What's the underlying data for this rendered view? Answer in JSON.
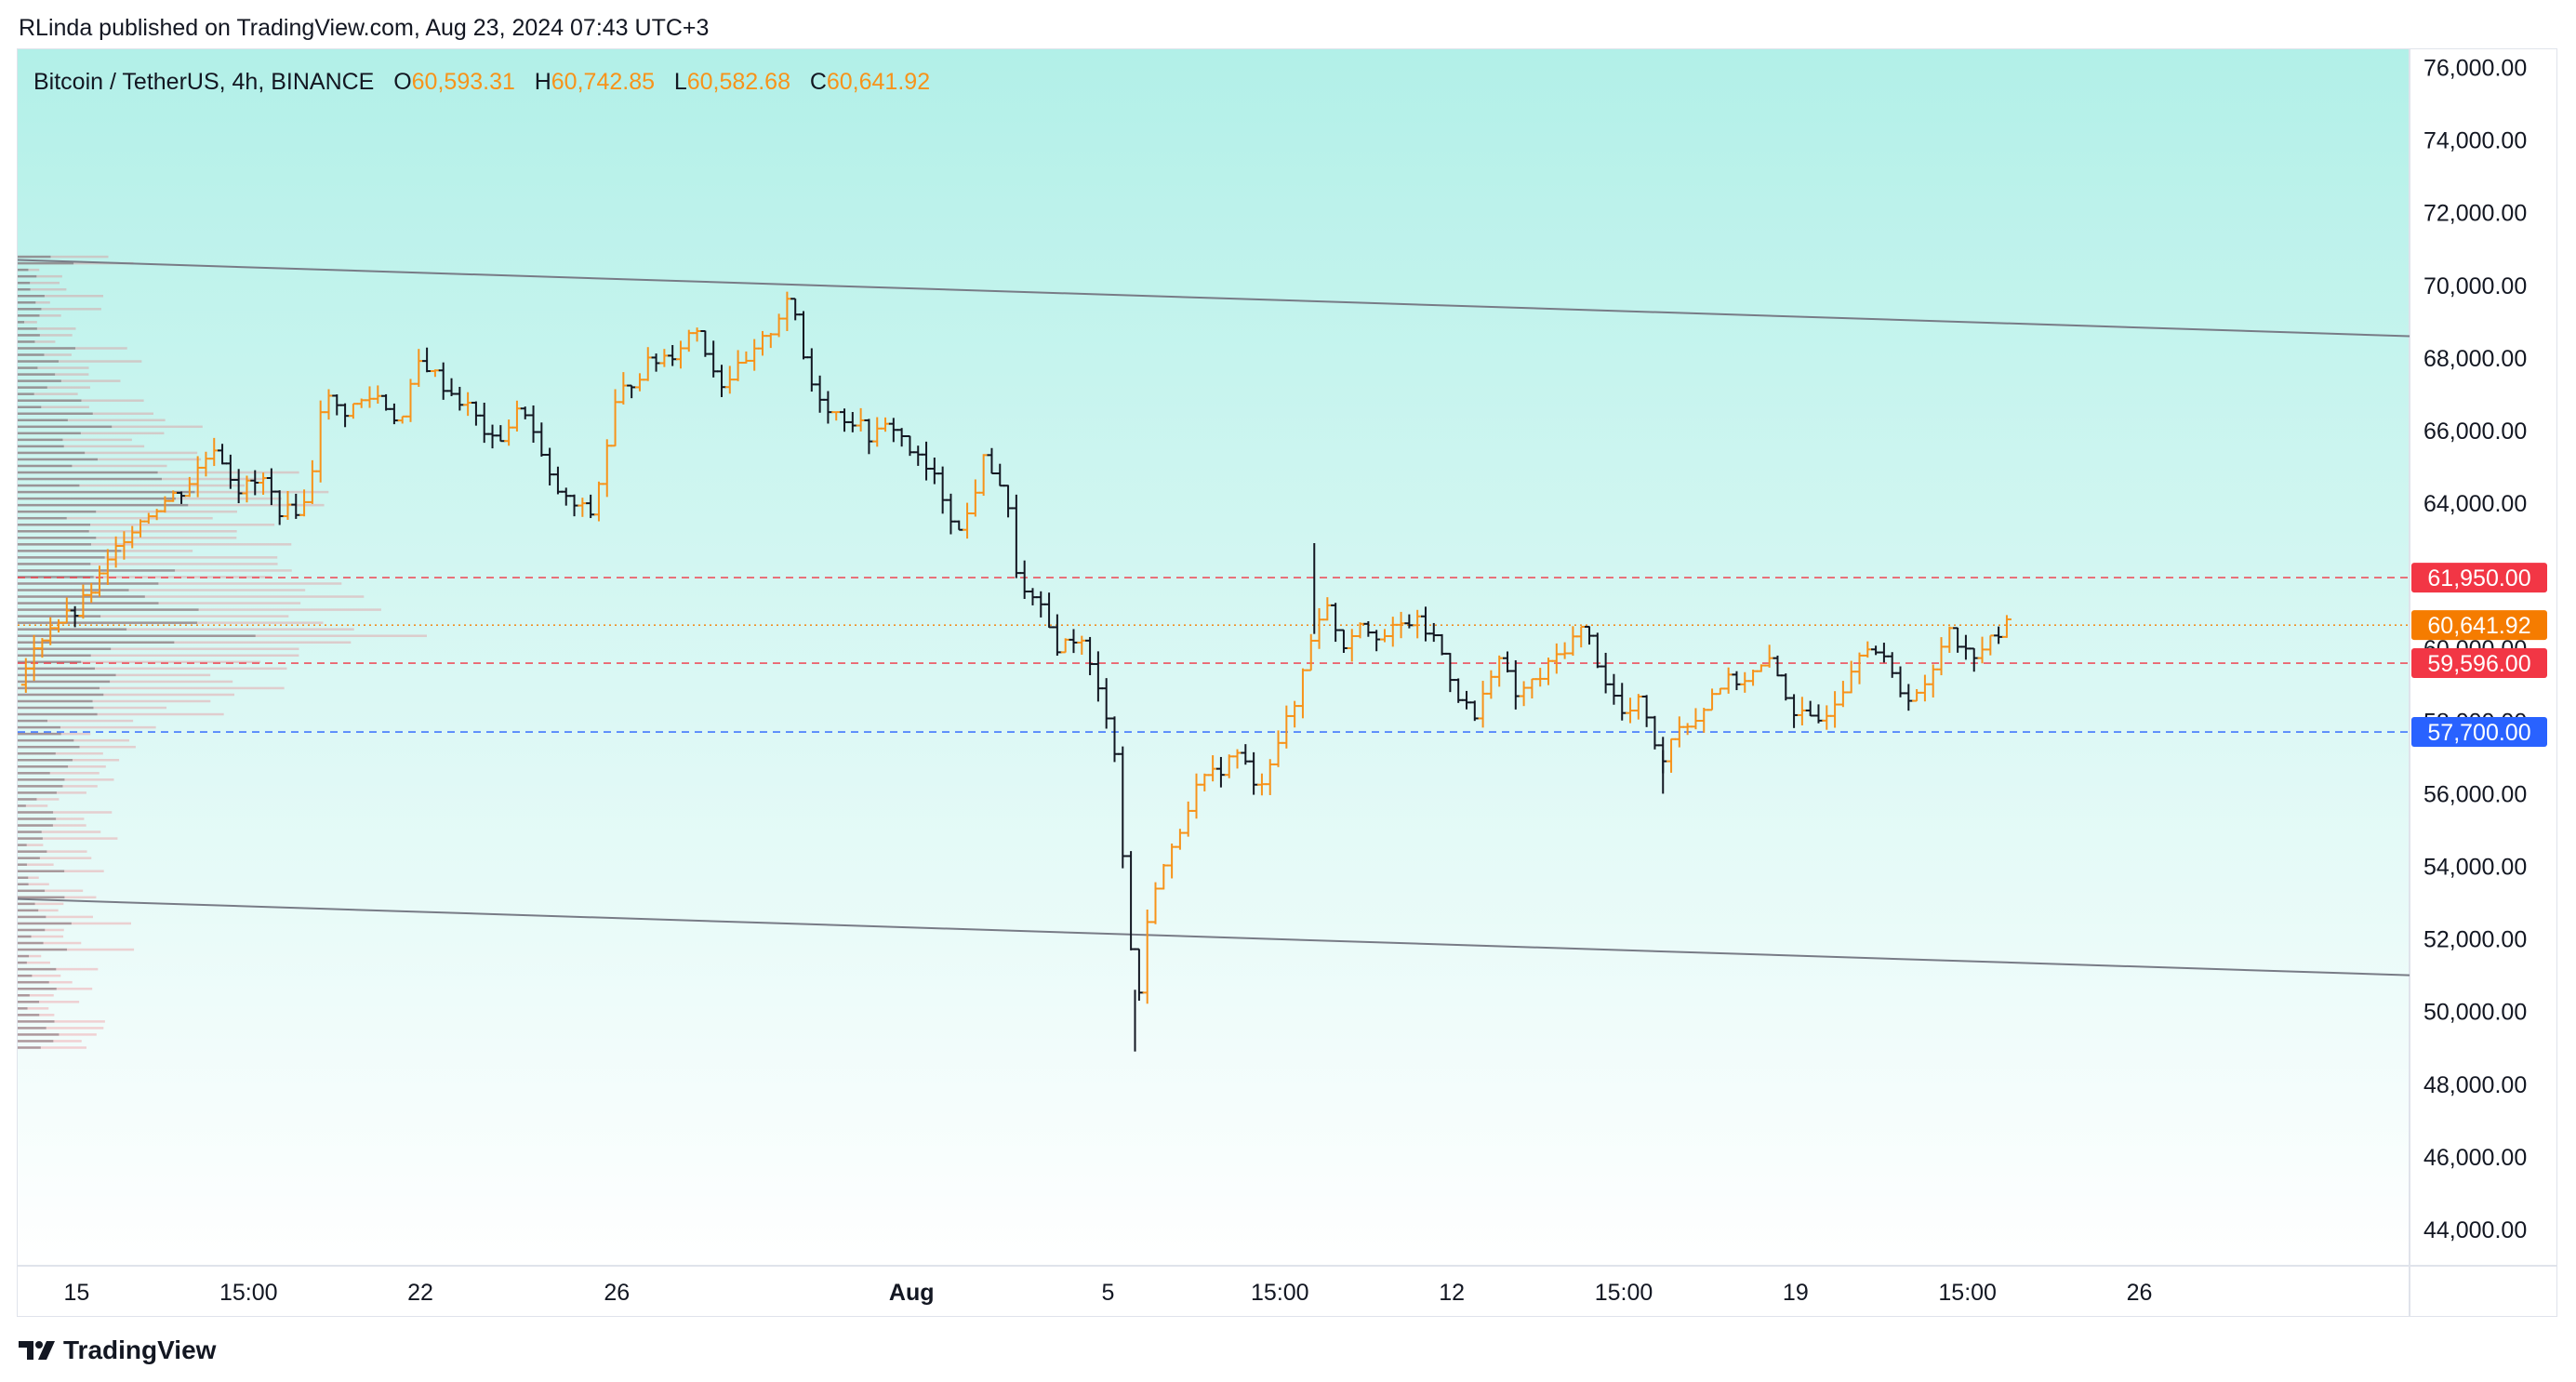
{
  "attribution": "RLinda published on TradingView.com, Aug 23, 2024 07:43 UTC+3",
  "legend": {
    "symbol": "Bitcoin / TetherUS, 4h, BINANCE",
    "o_label": "O",
    "o_value": "60,593.31",
    "h_label": "H",
    "h_value": "60,742.85",
    "l_label": "L",
    "l_value": "60,582.68",
    "c_label": "C",
    "c_value": "60,641.92"
  },
  "footer": {
    "brand": "TradingView"
  },
  "colors": {
    "up": "#f7931a",
    "down": "#131722",
    "bg_top": "#b2f0e8",
    "bg_bottom": "#ffffff",
    "level_red": "#f23645",
    "level_blue": "#2962ff",
    "price_orange": "#f57c00"
  },
  "chart_data": {
    "type": "candlestick",
    "interval": "4h",
    "ylim": [
      43000,
      76500
    ],
    "y_ticks": [
      {
        "v": 76000,
        "label": "76,000.00"
      },
      {
        "v": 74000,
        "label": "74,000.00"
      },
      {
        "v": 72000,
        "label": "72,000.00"
      },
      {
        "v": 70000,
        "label": "70,000.00"
      },
      {
        "v": 68000,
        "label": "68,000.00"
      },
      {
        "v": 66000,
        "label": "66,000.00"
      },
      {
        "v": 64000,
        "label": "64,000.00"
      },
      {
        "v": 62000,
        "label": "62,000.00"
      },
      {
        "v": 60000,
        "label": "60,000.00"
      },
      {
        "v": 58000,
        "label": "58,000.00"
      },
      {
        "v": 56000,
        "label": "56,000.00"
      },
      {
        "v": 54000,
        "label": "54,000.00"
      },
      {
        "v": 52000,
        "label": "52,000.00"
      },
      {
        "v": 50000,
        "label": "50,000.00"
      },
      {
        "v": 48000,
        "label": "48,000.00"
      },
      {
        "v": 46000,
        "label": "46,000.00"
      },
      {
        "v": 44000,
        "label": "44,000.00"
      }
    ],
    "x_ticks": [
      {
        "t": 0,
        "label": "15"
      },
      {
        "t": 3.5,
        "label": "15:00"
      },
      {
        "t": 7,
        "label": "22"
      },
      {
        "t": 11,
        "label": "26"
      },
      {
        "t": 17,
        "label": "Aug"
      },
      {
        "t": 21,
        "label": "5"
      },
      {
        "t": 24.5,
        "label": "15:00"
      },
      {
        "t": 28,
        "label": "12"
      },
      {
        "t": 31.5,
        "label": "15:00"
      },
      {
        "t": 35,
        "label": "19"
      },
      {
        "t": 38.5,
        "label": "15:00"
      },
      {
        "t": 42,
        "label": "26"
      }
    ],
    "x_range_days": [
      -1.2,
      47.5
    ],
    "levels": [
      {
        "price": 61950,
        "label": "61,950.00",
        "style": "dashed",
        "color": "#f23645"
      },
      {
        "price": 59596,
        "label": "59,596.00",
        "style": "dashed",
        "color": "#f23645"
      },
      {
        "price": 57700,
        "label": "57,700.00",
        "style": "dashed",
        "color": "#2962ff"
      },
      {
        "price": 60641.92,
        "label": "60,641.92",
        "style": "dotted",
        "color": "#f57c00"
      }
    ],
    "channel": [
      {
        "t1": -1.2,
        "p1": 70700,
        "t2": 47.5,
        "p2": 68600
      },
      {
        "t1": -1.2,
        "p1": 53100,
        "t2": 47.5,
        "p2": 51000
      }
    ],
    "candles_anchor_days": [
      [
        -1.2,
        59000
      ],
      [
        -0.6,
        60600
      ],
      [
        0.0,
        61000
      ],
      [
        0.5,
        62000
      ],
      [
        1.0,
        63200
      ],
      [
        1.6,
        63900
      ],
      [
        2.2,
        64400
      ],
      [
        2.8,
        65600
      ],
      [
        3.3,
        64400
      ],
      [
        3.8,
        64600
      ],
      [
        4.2,
        63700
      ],
      [
        4.7,
        64000
      ],
      [
        5.0,
        67000
      ],
      [
        5.4,
        66500
      ],
      [
        6.1,
        67000
      ],
      [
        6.6,
        66200
      ],
      [
        7.0,
        68000
      ],
      [
        7.5,
        67200
      ],
      [
        8.0,
        66600
      ],
      [
        8.5,
        65600
      ],
      [
        9.1,
        66700
      ],
      [
        9.6,
        64700
      ],
      [
        10.0,
        64000
      ],
      [
        10.5,
        63700
      ],
      [
        11.0,
        66900
      ],
      [
        11.6,
        67800
      ],
      [
        12.2,
        68200
      ],
      [
        12.6,
        68900
      ],
      [
        13.1,
        67300
      ],
      [
        13.7,
        67900
      ],
      [
        14.2,
        68900
      ],
      [
        14.5,
        69800
      ],
      [
        14.9,
        67400
      ],
      [
        15.4,
        66500
      ],
      [
        15.8,
        66300
      ],
      [
        16.2,
        65800
      ],
      [
        16.6,
        66200
      ],
      [
        17.0,
        65400
      ],
      [
        17.5,
        64600
      ],
      [
        18.0,
        63100
      ],
      [
        18.5,
        65300
      ],
      [
        18.9,
        64300
      ],
      [
        19.2,
        61600
      ],
      [
        19.6,
        61100
      ],
      [
        20.0,
        60000
      ],
      [
        20.4,
        60400
      ],
      [
        20.8,
        58800
      ],
      [
        21.1,
        57800
      ],
      [
        21.4,
        52500
      ],
      [
        21.6,
        50200
      ],
      [
        21.9,
        53400
      ],
      [
        22.3,
        54400
      ],
      [
        22.7,
        56000
      ],
      [
        23.2,
        56600
      ],
      [
        23.7,
        57200
      ],
      [
        24.0,
        56000
      ],
      [
        24.5,
        57600
      ],
      [
        24.8,
        58400
      ],
      [
        25.1,
        60200
      ],
      [
        25.4,
        61300
      ],
      [
        25.8,
        60100
      ],
      [
        26.1,
        60800
      ],
      [
        26.6,
        60300
      ],
      [
        27.2,
        60800
      ],
      [
        27.7,
        60200
      ],
      [
        28.1,
        58800
      ],
      [
        28.5,
        58000
      ],
      [
        28.9,
        59900
      ],
      [
        29.3,
        58700
      ],
      [
        29.8,
        59200
      ],
      [
        30.2,
        59900
      ],
      [
        30.7,
        60600
      ],
      [
        31.1,
        59200
      ],
      [
        31.5,
        58100
      ],
      [
        31.9,
        58600
      ],
      [
        32.2,
        56800
      ],
      [
        32.6,
        57900
      ],
      [
        33.0,
        58100
      ],
      [
        33.4,
        59000
      ],
      [
        34.0,
        59200
      ],
      [
        34.5,
        59600
      ],
      [
        35.0,
        58200
      ],
      [
        35.4,
        57900
      ],
      [
        35.9,
        58800
      ],
      [
        36.4,
        60300
      ],
      [
        36.8,
        59600
      ],
      [
        37.2,
        58700
      ],
      [
        37.7,
        58900
      ],
      [
        38.1,
        60700
      ],
      [
        38.5,
        59800
      ],
      [
        39.0,
        60200
      ],
      [
        39.3,
        60642
      ]
    ]
  }
}
